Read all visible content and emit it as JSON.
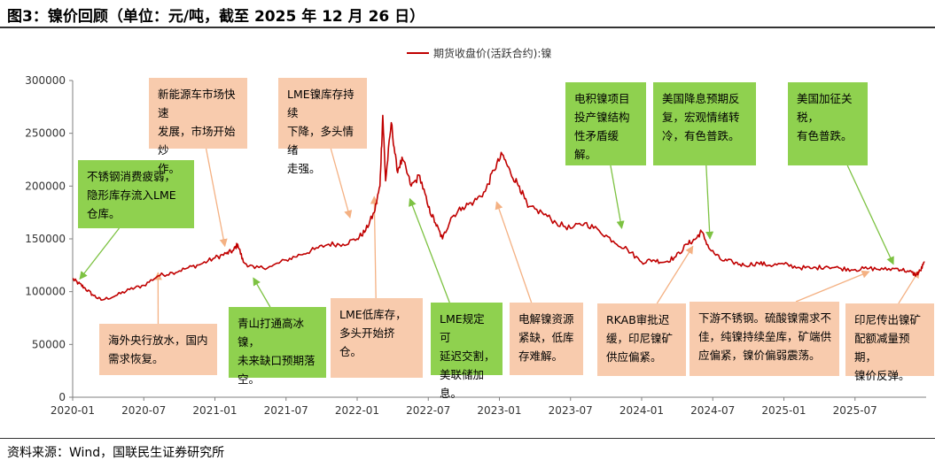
{
  "title": "图3：镍价回顾（单位：元/吨，截至 2025 年 12 月 26 日）",
  "source": "资料来源：Wind，国联民生证券研究所",
  "colors": {
    "line": "#c00000",
    "green": "#8fd14f",
    "peach": "#f8cbad",
    "arrow_green": "#7dc242",
    "arrow_peach": "#f4b183"
  },
  "chart_data": {
    "type": "line",
    "title": "",
    "xlabel": "",
    "ylabel": "",
    "ylim": [
      0,
      300000
    ],
    "yticks": [
      0,
      50000,
      100000,
      150000,
      200000,
      250000,
      300000
    ],
    "ytick_labels": [
      "0",
      "50000",
      "100000",
      "150000",
      "200000",
      "250000",
      "300000"
    ],
    "xlim": [
      2020.0,
      2026.0
    ],
    "xticks": [
      2020.0,
      2020.5,
      2021.0,
      2021.5,
      2022.0,
      2022.5,
      2023.0,
      2023.5,
      2024.0,
      2024.5,
      2025.0,
      2025.5
    ],
    "xtick_labels": [
      "2020-01",
      "2020-07",
      "2021-01",
      "2021-07",
      "2022-01",
      "2022-07",
      "2023-01",
      "2023-07",
      "2024-01",
      "2024-07",
      "2025-01",
      "2025-07"
    ],
    "legend": {
      "position": "top-center",
      "entries": [
        "期货收盘价(活跃合约):镍"
      ]
    },
    "series": [
      {
        "name": "期货收盘价(活跃合约):镍",
        "points": [
          [
            2020.0,
            112000
          ],
          [
            2020.04,
            108000
          ],
          [
            2020.08,
            104000
          ],
          [
            2020.14,
            97000
          ],
          [
            2020.2,
            92000
          ],
          [
            2020.3,
            96000
          ],
          [
            2020.4,
            102000
          ],
          [
            2020.5,
            106000
          ],
          [
            2020.6,
            115000
          ],
          [
            2020.7,
            118000
          ],
          [
            2020.8,
            122000
          ],
          [
            2020.9,
            126000
          ],
          [
            2021.0,
            132000
          ],
          [
            2021.08,
            136000
          ],
          [
            2021.13,
            139000
          ],
          [
            2021.16,
            145000
          ],
          [
            2021.2,
            128000
          ],
          [
            2021.28,
            122000
          ],
          [
            2021.4,
            124000
          ],
          [
            2021.5,
            130000
          ],
          [
            2021.6,
            135000
          ],
          [
            2021.7,
            140000
          ],
          [
            2021.8,
            145000
          ],
          [
            2021.9,
            145000
          ],
          [
            2022.0,
            150000
          ],
          [
            2022.06,
            158000
          ],
          [
            2022.12,
            175000
          ],
          [
            2022.16,
            200000
          ],
          [
            2022.18,
            267000
          ],
          [
            2022.2,
            205000
          ],
          [
            2022.24,
            260000
          ],
          [
            2022.28,
            215000
          ],
          [
            2022.32,
            225000
          ],
          [
            2022.38,
            200000
          ],
          [
            2022.44,
            210000
          ],
          [
            2022.5,
            180000
          ],
          [
            2022.55,
            165000
          ],
          [
            2022.6,
            150000
          ],
          [
            2022.66,
            170000
          ],
          [
            2022.74,
            180000
          ],
          [
            2022.82,
            185000
          ],
          [
            2022.9,
            195000
          ],
          [
            2022.96,
            215000
          ],
          [
            2023.02,
            230000
          ],
          [
            2023.08,
            212000
          ],
          [
            2023.14,
            200000
          ],
          [
            2023.2,
            180000
          ],
          [
            2023.3,
            175000
          ],
          [
            2023.4,
            165000
          ],
          [
            2023.5,
            160000
          ],
          [
            2023.6,
            165000
          ],
          [
            2023.7,
            158000
          ],
          [
            2023.8,
            148000
          ],
          [
            2023.9,
            140000
          ],
          [
            2024.0,
            128000
          ],
          [
            2024.08,
            130000
          ],
          [
            2024.16,
            128000
          ],
          [
            2024.24,
            133000
          ],
          [
            2024.32,
            145000
          ],
          [
            2024.38,
            150000
          ],
          [
            2024.42,
            157000
          ],
          [
            2024.48,
            140000
          ],
          [
            2024.56,
            130000
          ],
          [
            2024.64,
            128000
          ],
          [
            2024.72,
            125000
          ],
          [
            2024.82,
            127000
          ],
          [
            2024.9,
            125000
          ],
          [
            2025.0,
            126000
          ],
          [
            2025.1,
            123000
          ],
          [
            2025.2,
            122000
          ],
          [
            2025.3,
            124000
          ],
          [
            2025.4,
            122000
          ],
          [
            2025.5,
            121000
          ],
          [
            2025.6,
            122000
          ],
          [
            2025.7,
            121000
          ],
          [
            2025.8,
            122000
          ],
          [
            2025.88,
            119000
          ],
          [
            2025.93,
            116000
          ],
          [
            2025.96,
            120000
          ],
          [
            2025.99,
            128000
          ]
        ]
      }
    ],
    "annotations": [
      {
        "id": "a1",
        "color": "green",
        "text": "不锈钢消费疲弱，\n隐形库存流入LME\n仓库。",
        "target": [
          2020.05,
          112000
        ]
      },
      {
        "id": "a2",
        "color": "peach",
        "text": "海外央行放水，国内\n需求恢复。",
        "target": [
          2020.6,
          118000
        ]
      },
      {
        "id": "a3",
        "color": "peach",
        "text": "新能源车市场快速\n发展，市场开始炒\n作。",
        "target": [
          2021.07,
          143000
        ]
      },
      {
        "id": "a4",
        "color": "green",
        "text": "青山打通高冰镍，\n未来缺口预期落\n空。",
        "target": [
          2021.27,
          113000
        ]
      },
      {
        "id": "a5",
        "color": "peach",
        "text": "LME镍库存持续\n下降，多头情绪\n走强。",
        "target": [
          2021.95,
          170000
        ]
      },
      {
        "id": "a6",
        "color": "peach",
        "text": "LME低库存，\n多头开始挤仓。",
        "target": [
          2022.12,
          190000
        ]
      },
      {
        "id": "a7",
        "color": "green",
        "text": "LME规定可\n延迟交割，\n美联储加息。",
        "target": [
          2022.37,
          188000
        ]
      },
      {
        "id": "a8",
        "color": "peach",
        "text": "电解镍资源\n紧缺，低库\n存难解。",
        "target": [
          2022.98,
          185000
        ]
      },
      {
        "id": "a9",
        "color": "green",
        "text": "电积镍项目\n投产镍结构\n性矛盾缓解。",
        "target": [
          2023.86,
          160000
        ]
      },
      {
        "id": "a10",
        "color": "peach",
        "text": "RKAB审批迟\n缓，印尼镍矿\n供应偏紧。",
        "target": [
          2024.36,
          143000
        ]
      },
      {
        "id": "a11",
        "color": "green",
        "text": "美国降息预期反\n复，宏观情绪转\n冷，有色普跌。",
        "target": [
          2024.48,
          150000
        ]
      },
      {
        "id": "a12",
        "color": "peach",
        "text": "下游不锈钢。硫酸镍需求不\n佳，纯镍持续垒库，矿端供\n应偏紧，镍价偏弱震荡。",
        "target": [
          2025.6,
          119000
        ]
      },
      {
        "id": "a13",
        "color": "green",
        "text": "美国加征关税，\n有色普跌。",
        "target": [
          2025.77,
          126000
        ]
      },
      {
        "id": "a14",
        "color": "peach",
        "text": "印尼传出镍矿\n配额减量预期，\n镍价反弹。",
        "target": [
          2025.95,
          120000
        ]
      }
    ]
  }
}
